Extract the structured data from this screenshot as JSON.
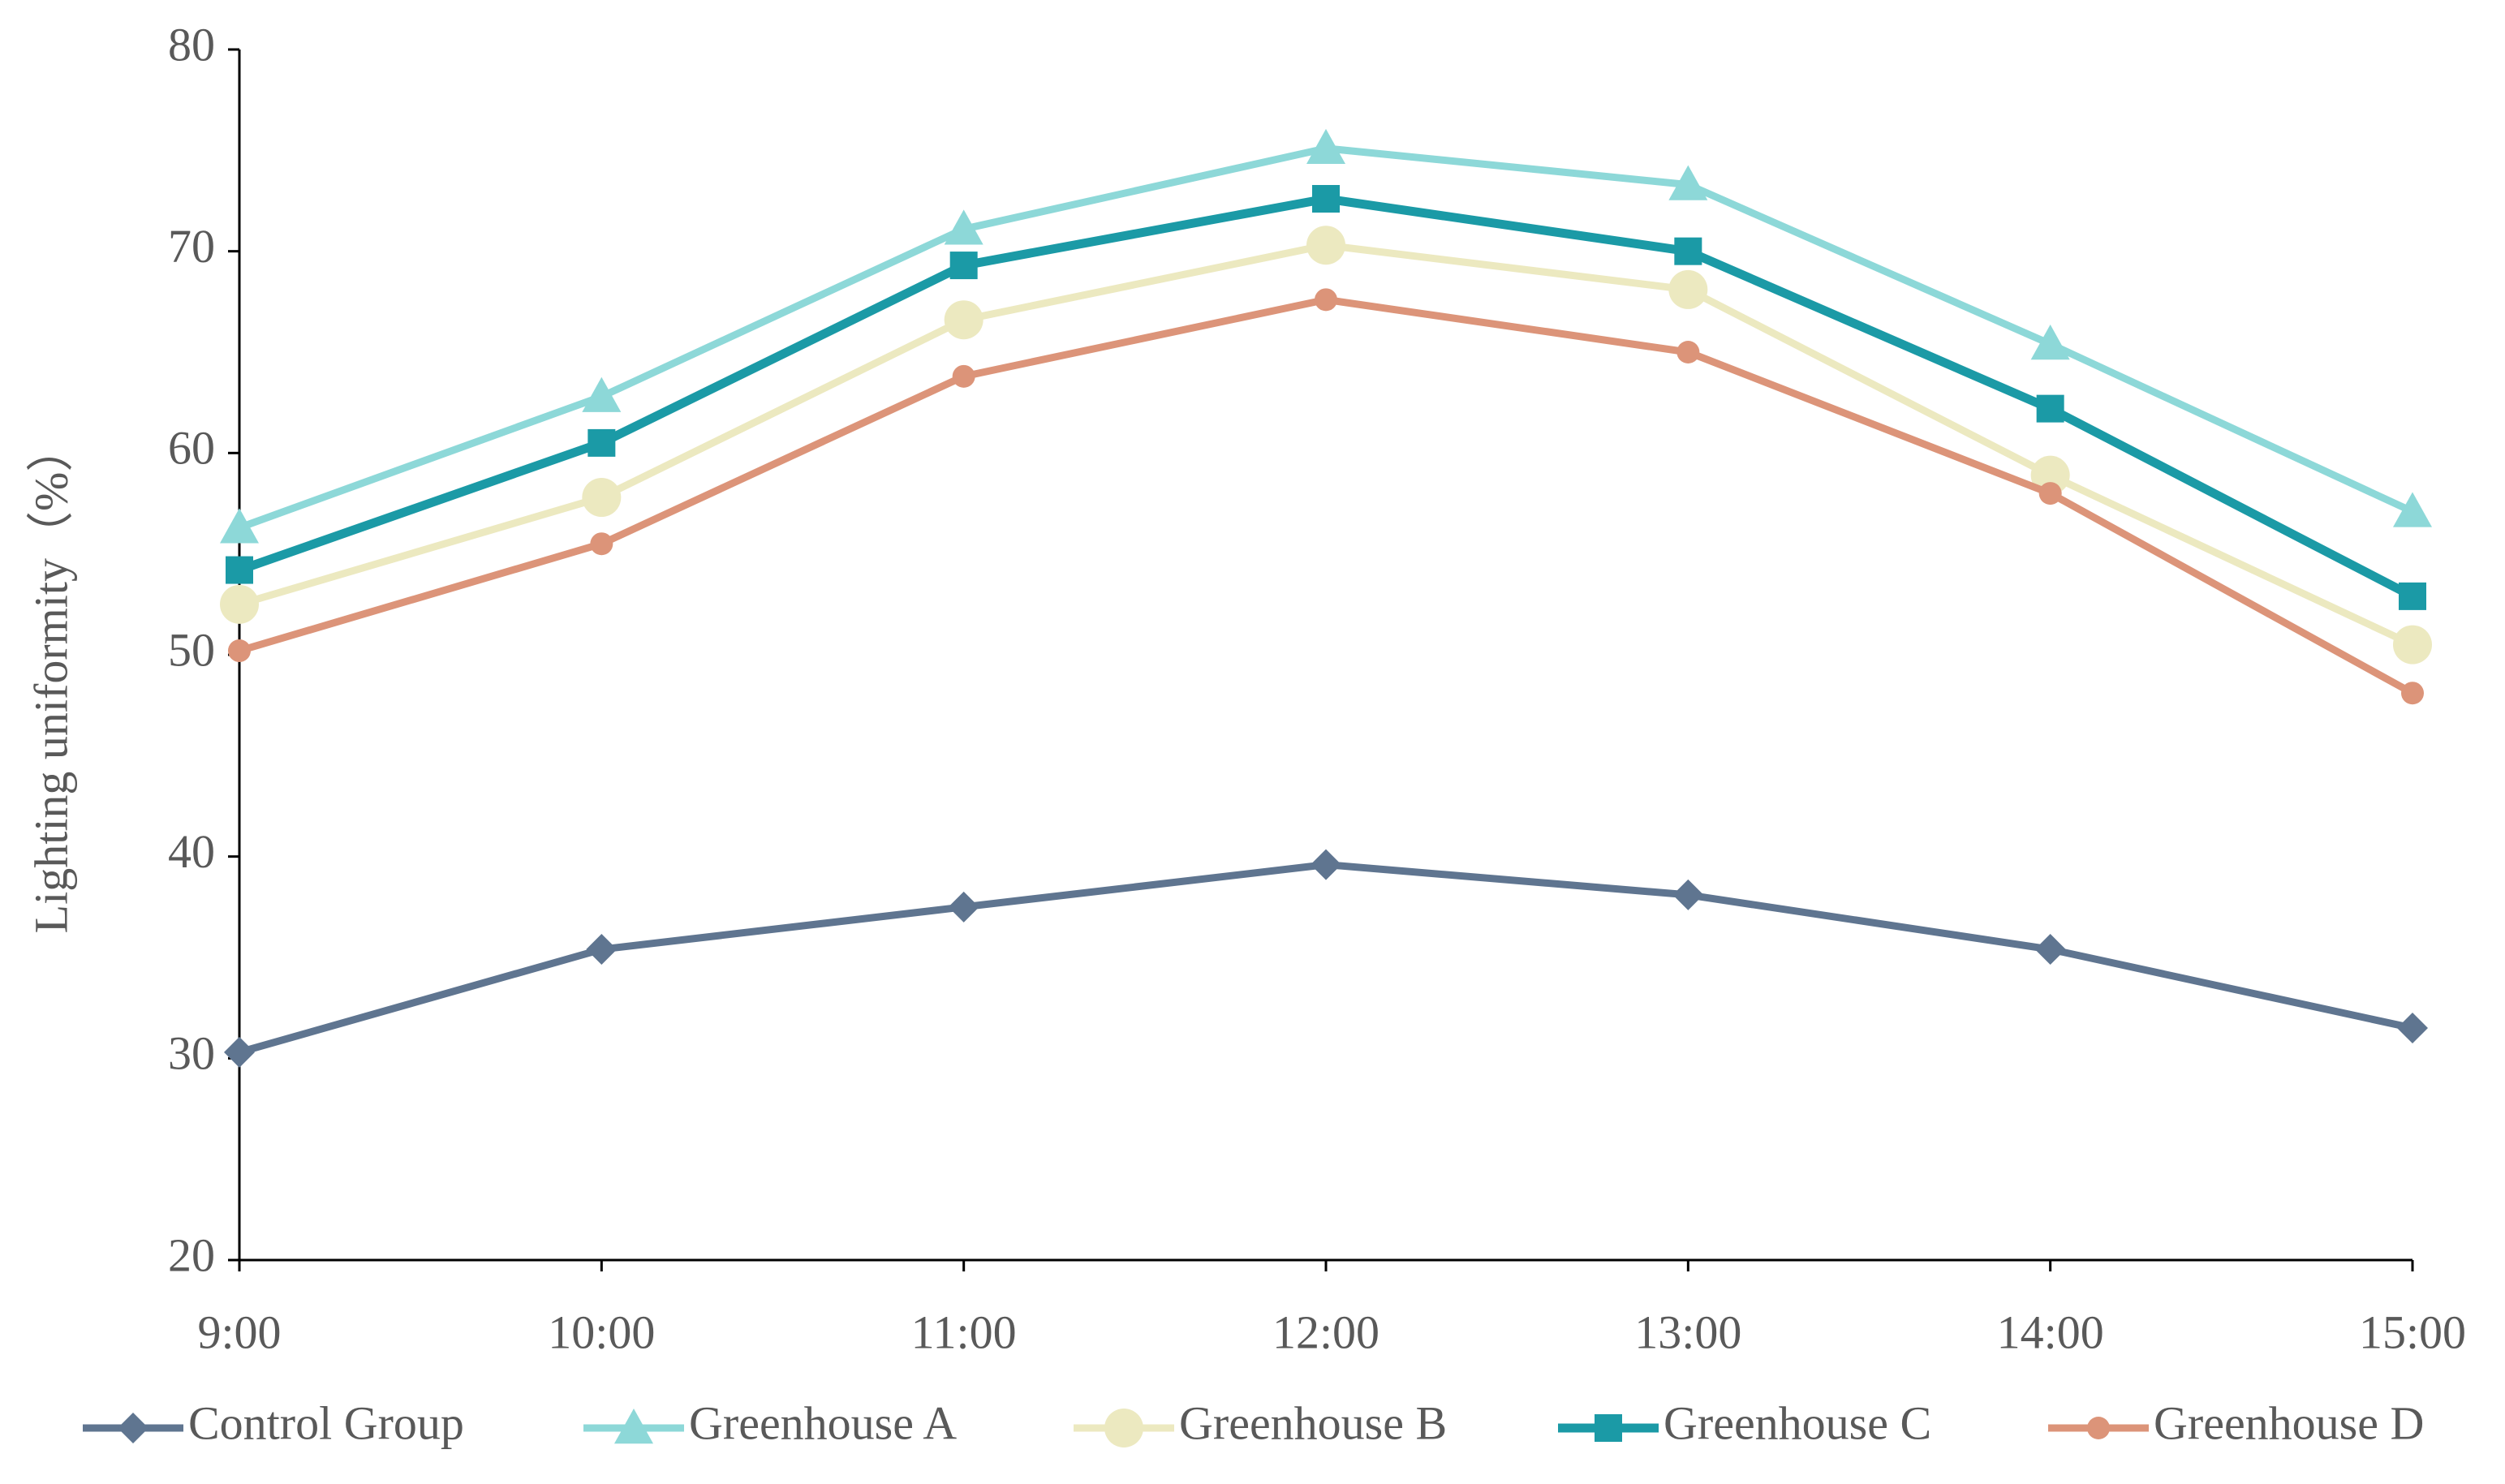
{
  "chart_data": {
    "type": "line",
    "y_label": "Lighting uniformity（%）",
    "categories": [
      "9:00",
      "10:00",
      "11:00",
      "12:00",
      "13:00",
      "14:00",
      "15:00"
    ],
    "series": [
      {
        "name": "Control Group",
        "color": "#5f7590",
        "marker": "diamond",
        "values": [
          30.3,
          35.4,
          37.5,
          39.6,
          38.1,
          35.4,
          31.5
        ]
      },
      {
        "name": "Greenhouse A",
        "color": "#8dd8d8",
        "marker": "triangle",
        "values": [
          56.3,
          62.8,
          71.1,
          75.1,
          73.3,
          65.4,
          57.1
        ]
      },
      {
        "name": "Greenhouse B",
        "color": "#ece9c0",
        "marker": "large-circle",
        "values": [
          52.5,
          57.8,
          66.6,
          70.3,
          68.1,
          58.9,
          50.5
        ]
      },
      {
        "name": "Greenhouse C",
        "color": "#1b9aa6",
        "marker": "square",
        "values": [
          54.2,
          60.5,
          69.3,
          72.6,
          70.0,
          62.2,
          52.9
        ]
      },
      {
        "name": "Greenhouse D",
        "color": "#dc9479",
        "marker": "circle",
        "values": [
          50.2,
          55.5,
          63.8,
          67.6,
          65.0,
          58.0,
          48.1
        ]
      }
    ],
    "ylim": [
      20,
      80
    ],
    "yticks": [
      20,
      30,
      40,
      50,
      60,
      70,
      80
    ],
    "legend": "bottom"
  }
}
